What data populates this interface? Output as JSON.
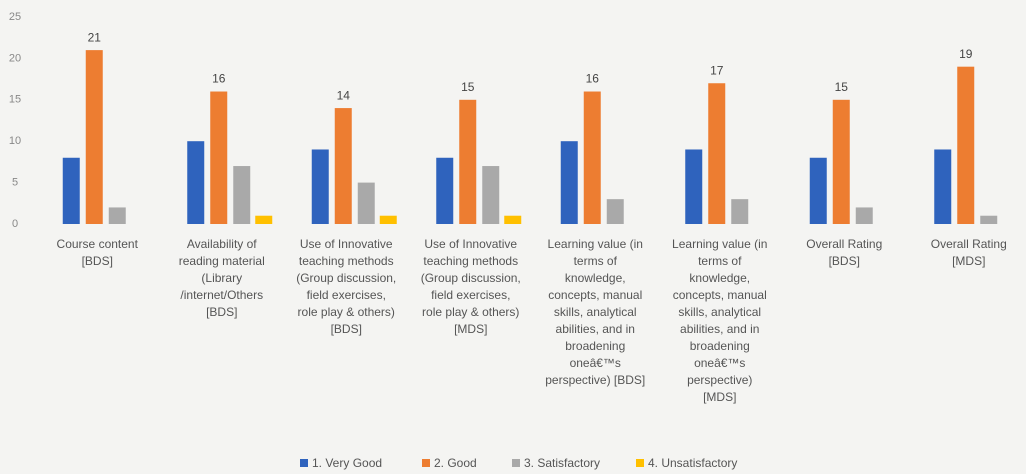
{
  "chart_data": {
    "type": "bar",
    "categories": [
      [
        "Course content",
        "[BDS]"
      ],
      [
        "Availability of",
        "reading material",
        "(Library",
        "/internet/Others",
        "[BDS]"
      ],
      [
        "Use of Innovative",
        "teaching methods",
        "(Group discussion,",
        "field exercises,",
        "role play & others)",
        "[BDS]"
      ],
      [
        "Use of Innovative",
        "teaching methods",
        "(Group discussion,",
        "field exercises,",
        "role play & others)",
        "[MDS]"
      ],
      [
        "Learning value (in",
        "terms of",
        "knowledge,",
        "concepts, manual",
        "skills, analytical",
        "abilities, and in",
        "broadening",
        "oneâ€™s",
        "perspective) [BDS]"
      ],
      [
        "Learning value (in",
        "terms of",
        "knowledge,",
        "concepts, manual",
        "skills, analytical",
        "abilities, and in",
        "broadening",
        "oneâ€™s",
        "perspective)",
        "[MDS]"
      ],
      [
        "Overall Rating",
        "[BDS]"
      ],
      [
        "Overall Rating",
        "[MDS]"
      ]
    ],
    "series": [
      {
        "name": "1. Very Good",
        "color": "#2f63bd",
        "values": [
          8,
          10,
          9,
          8,
          10,
          9,
          8,
          9
        ]
      },
      {
        "name": "2. Good",
        "color": "#ed7d31",
        "values": [
          21,
          16,
          14,
          15,
          16,
          17,
          15,
          19
        ]
      },
      {
        "name": "3. Satisfactory",
        "color": "#a9a9a9",
        "values": [
          2,
          7,
          5,
          7,
          3,
          3,
          2,
          1
        ]
      },
      {
        "name": "4. Unsatisfactory",
        "color": "#ffc000",
        "values": [
          0,
          1,
          1,
          1,
          0,
          0,
          0,
          0
        ]
      }
    ],
    "labeled_series": 1,
    "ylim": [
      0,
      25
    ],
    "yticks": [
      0,
      5,
      10,
      15,
      20,
      25
    ],
    "grid": false
  }
}
